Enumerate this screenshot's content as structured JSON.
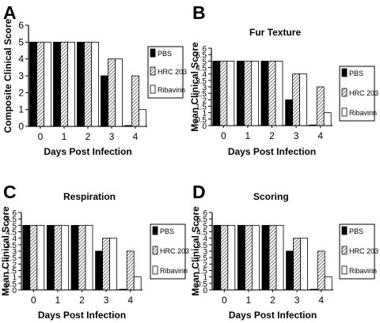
{
  "colors": {
    "PBS": "#000000",
    "HRC 203": "#bdbdbd",
    "Ribavirin": "#ffffff"
  },
  "chart_data": [
    {
      "type": "bar",
      "panel_letter": "A",
      "title": "",
      "xlabel": "Days Post Infection",
      "ylabel": "Composite Clinical Score",
      "categories": [
        "0",
        "1",
        "2",
        "3",
        "4"
      ],
      "ylim": [
        0,
        6
      ],
      "yticks": [
        "0",
        "1",
        "2",
        "3",
        "4",
        "5",
        "6"
      ],
      "legend_position": "right",
      "series": [
        {
          "name": "PBS",
          "values": [
            5,
            5,
            5,
            3,
            0.05
          ]
        },
        {
          "name": "HRC 203",
          "values": [
            5,
            5,
            5,
            4,
            3
          ]
        },
        {
          "name": "Ribavirin",
          "values": [
            5,
            5,
            5,
            4,
            1
          ]
        }
      ]
    },
    {
      "type": "bar",
      "panel_letter": "B",
      "title": "Fur Texture",
      "xlabel": "Days Post Infection",
      "ylabel": "Mean Clinical Score",
      "categories": [
        "0",
        "1",
        "2",
        "3",
        "4"
      ],
      "ylim": [
        0,
        6
      ],
      "yticks": [
        "0",
        "0.5",
        "1",
        "1.5",
        "2",
        "2.5",
        "3",
        "3.5",
        "4",
        "4.5",
        "5",
        "5.5",
        "6"
      ],
      "legend_position": "right",
      "series": [
        {
          "name": "PBS",
          "values": [
            5,
            5,
            5,
            2,
            0.05
          ]
        },
        {
          "name": "HRC 203",
          "values": [
            5,
            5,
            5,
            4,
            3
          ]
        },
        {
          "name": "Ribavirin",
          "values": [
            5,
            5,
            5,
            4,
            1
          ]
        }
      ]
    },
    {
      "type": "bar",
      "panel_letter": "C",
      "title": "Respiration",
      "xlabel": "Days Post Infection",
      "ylabel": "Mean Clinical Score",
      "categories": [
        "0",
        "1",
        "2",
        "3",
        "4"
      ],
      "ylim": [
        0,
        6
      ],
      "yticks": [
        "0",
        "0.5",
        "1",
        "1.5",
        "2",
        "2.5",
        "3",
        "3.5",
        "4",
        "4.5",
        "5",
        "5.5",
        "6"
      ],
      "legend_position": "right",
      "series": [
        {
          "name": "PBS",
          "values": [
            5,
            5,
            5,
            3,
            0.05
          ]
        },
        {
          "name": "HRC 203",
          "values": [
            5,
            5,
            5,
            4,
            3
          ]
        },
        {
          "name": "Ribavirin",
          "values": [
            5,
            5,
            5,
            4,
            1
          ]
        }
      ]
    },
    {
      "type": "bar",
      "panel_letter": "D",
      "title": "Scoring",
      "xlabel": "Days Post Infection",
      "ylabel": "Mean Clinical Score",
      "categories": [
        "0",
        "1",
        "2",
        "3",
        "4"
      ],
      "ylim": [
        0,
        6
      ],
      "yticks": [
        "0",
        "0.5",
        "1",
        "1.5",
        "2",
        "2.5",
        "3",
        "3.5",
        "4",
        "4.5",
        "5",
        "5.5",
        "6"
      ],
      "legend_position": "right",
      "series": [
        {
          "name": "PBS",
          "values": [
            5,
            5,
            5,
            3,
            0.05
          ]
        },
        {
          "name": "HRC 203",
          "values": [
            5,
            5,
            5,
            4,
            3
          ]
        },
        {
          "name": "Ribavirin",
          "values": [
            5,
            5,
            5,
            4,
            1
          ]
        }
      ]
    }
  ]
}
